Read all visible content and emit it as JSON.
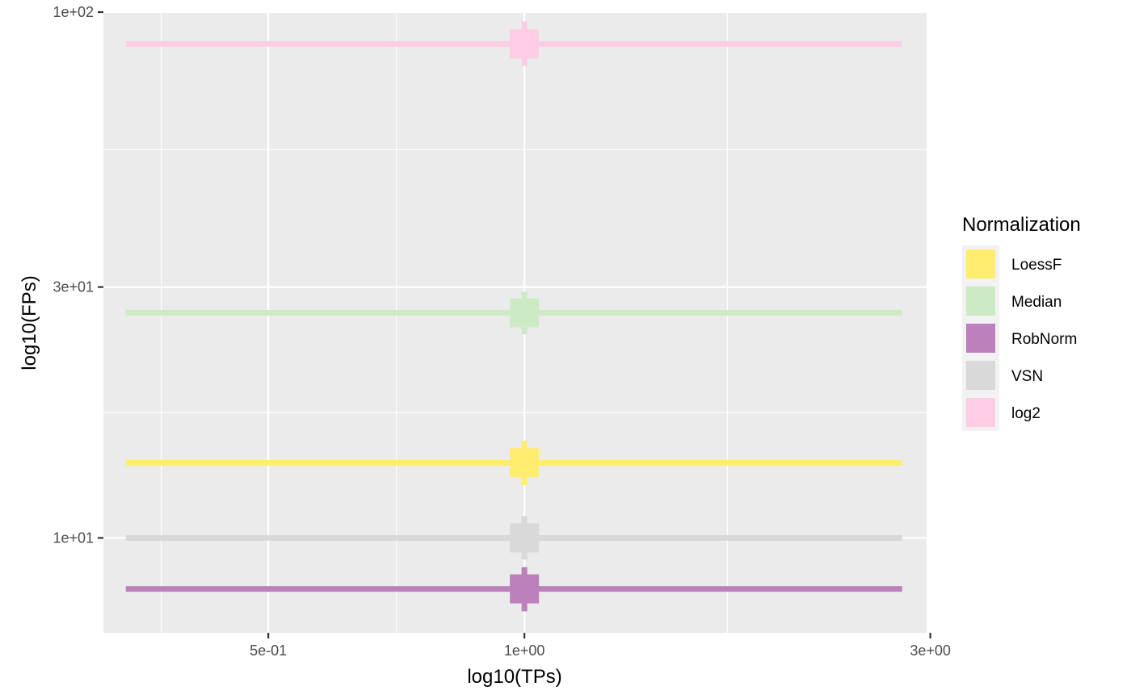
{
  "chart_data": {
    "type": "scatter",
    "xlabel": "log10(TPs)",
    "ylabel": "log10(FPs)",
    "x_scale": "log",
    "y_scale": "log",
    "xlim": [
      0.32,
      2.97
    ],
    "ylim": [
      6.6,
      100
    ],
    "x_ticks": [
      {
        "value": 0.5,
        "label": "5e-01"
      },
      {
        "value": 1,
        "label": "1e+00"
      },
      {
        "value": 3,
        "label": "3e+00"
      }
    ],
    "x_minor_ticks": [
      0.3742,
      0.7071,
      1.7321
    ],
    "y_ticks": [
      {
        "value": 10,
        "label": "1e+01"
      },
      {
        "value": 30,
        "label": "3e+01"
      },
      {
        "value": 100,
        "label": "1e+02"
      }
    ],
    "y_minor_ticks": [
      17.32,
      54.77
    ],
    "grid": true,
    "legend": {
      "title": "Normalization",
      "position": "right"
    },
    "series": [
      {
        "name": "LoessF",
        "color": "#FFED6F",
        "x": 1.0,
        "y": 13.9,
        "xmin": 0.34,
        "xmax": 2.78,
        "ymin": 12.6,
        "ymax": 15.3
      },
      {
        "name": "Median",
        "color": "#CCEBC5",
        "x": 1.0,
        "y": 26.8,
        "xmin": 0.34,
        "xmax": 2.78,
        "ymin": 24.4,
        "ymax": 29.4
      },
      {
        "name": "RobNorm",
        "color": "#BC80BD",
        "x": 1.0,
        "y": 8.0,
        "xmin": 0.34,
        "xmax": 2.78,
        "ymin": 7.25,
        "ymax": 8.8
      },
      {
        "name": "VSN",
        "color": "#D9D9D9",
        "x": 1.0,
        "y": 10.0,
        "xmin": 0.34,
        "xmax": 2.78,
        "ymin": 9.1,
        "ymax": 11.0
      },
      {
        "name": "log2",
        "color": "#FCCDE5",
        "x": 1.0,
        "y": 87.0,
        "xmin": 0.34,
        "xmax": 2.78,
        "ymin": 79.0,
        "ymax": 96.0
      }
    ]
  }
}
